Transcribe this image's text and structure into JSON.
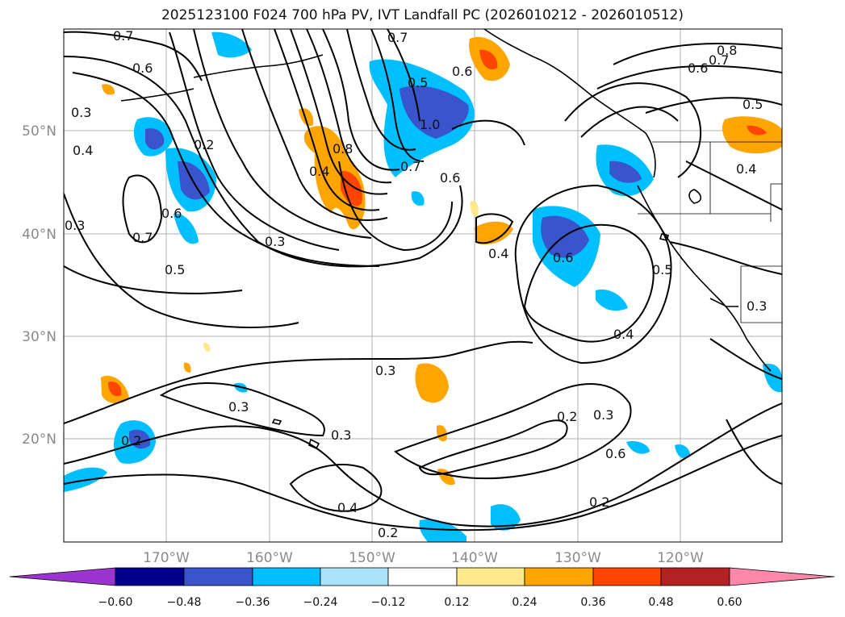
{
  "title": "2025123100 F024 700 hPa PV, IVT Landfall PC (2026010212 - 2026010512)",
  "map": {
    "lon_labels": [
      "170°W",
      "160°W",
      "150°W",
      "140°W",
      "130°W",
      "120°W"
    ],
    "lat_labels": [
      "50°N",
      "40°N",
      "30°N",
      "20°N"
    ],
    "contour_labels": [
      "0.7",
      "0.6",
      "0.3",
      "0.4",
      "0.2",
      "0.6",
      "0.7",
      "0.5",
      "0.3",
      "0.8",
      "0.4",
      "1.0",
      "0.7",
      "0.6",
      "0.4",
      "0.6",
      "0.7",
      "0.5",
      "0.8",
      "0.7",
      "0.6",
      "0.5",
      "0.3",
      "0.3",
      "0.3",
      "0.2",
      "0.3",
      "0.6",
      "0.2",
      "0.3",
      "0.4",
      "0.2",
      "0.2",
      "0.6",
      "0.4",
      "0.5",
      "0.3",
      "0.4"
    ]
  },
  "colorbar": {
    "tick_labels": [
      "−0.60",
      "−0.48",
      "−0.36",
      "−0.24",
      "−0.12",
      "0.12",
      "0.24",
      "0.36",
      "0.48",
      "0.60"
    ],
    "colors": [
      "#9a35d0",
      "#00008b",
      "#3a55cc",
      "#00bfff",
      "#ade3fa",
      "#ffffff",
      "#ffe88a",
      "#ffa500",
      "#ff4500",
      "#b22222",
      "#ff88aa"
    ]
  }
}
